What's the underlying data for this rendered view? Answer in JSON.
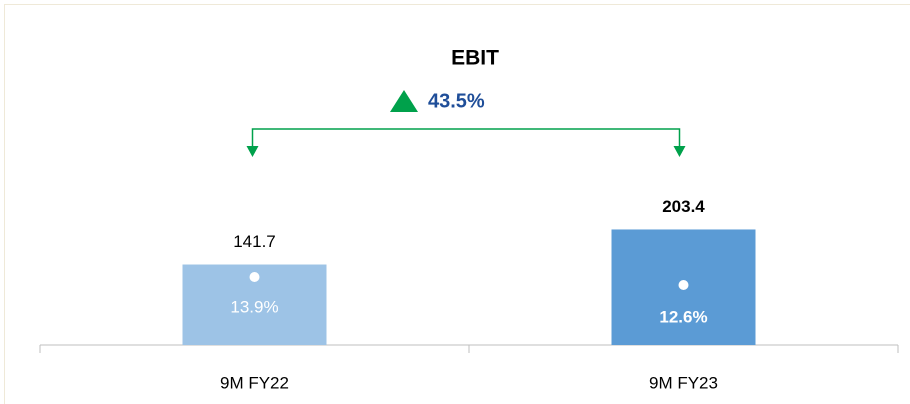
{
  "chart_data": {
    "type": "bar",
    "title": "EBIT",
    "annotation": "43.5%",
    "categories": [
      "9M FY22",
      "9M FY23"
    ],
    "values": [
      141.7,
      203.4
    ],
    "colors": [
      "#9dc3e6",
      "#5b9bd5"
    ],
    "margins": [
      "13.9%",
      "12.6%"
    ],
    "arrow_color": "#00a14b"
  }
}
